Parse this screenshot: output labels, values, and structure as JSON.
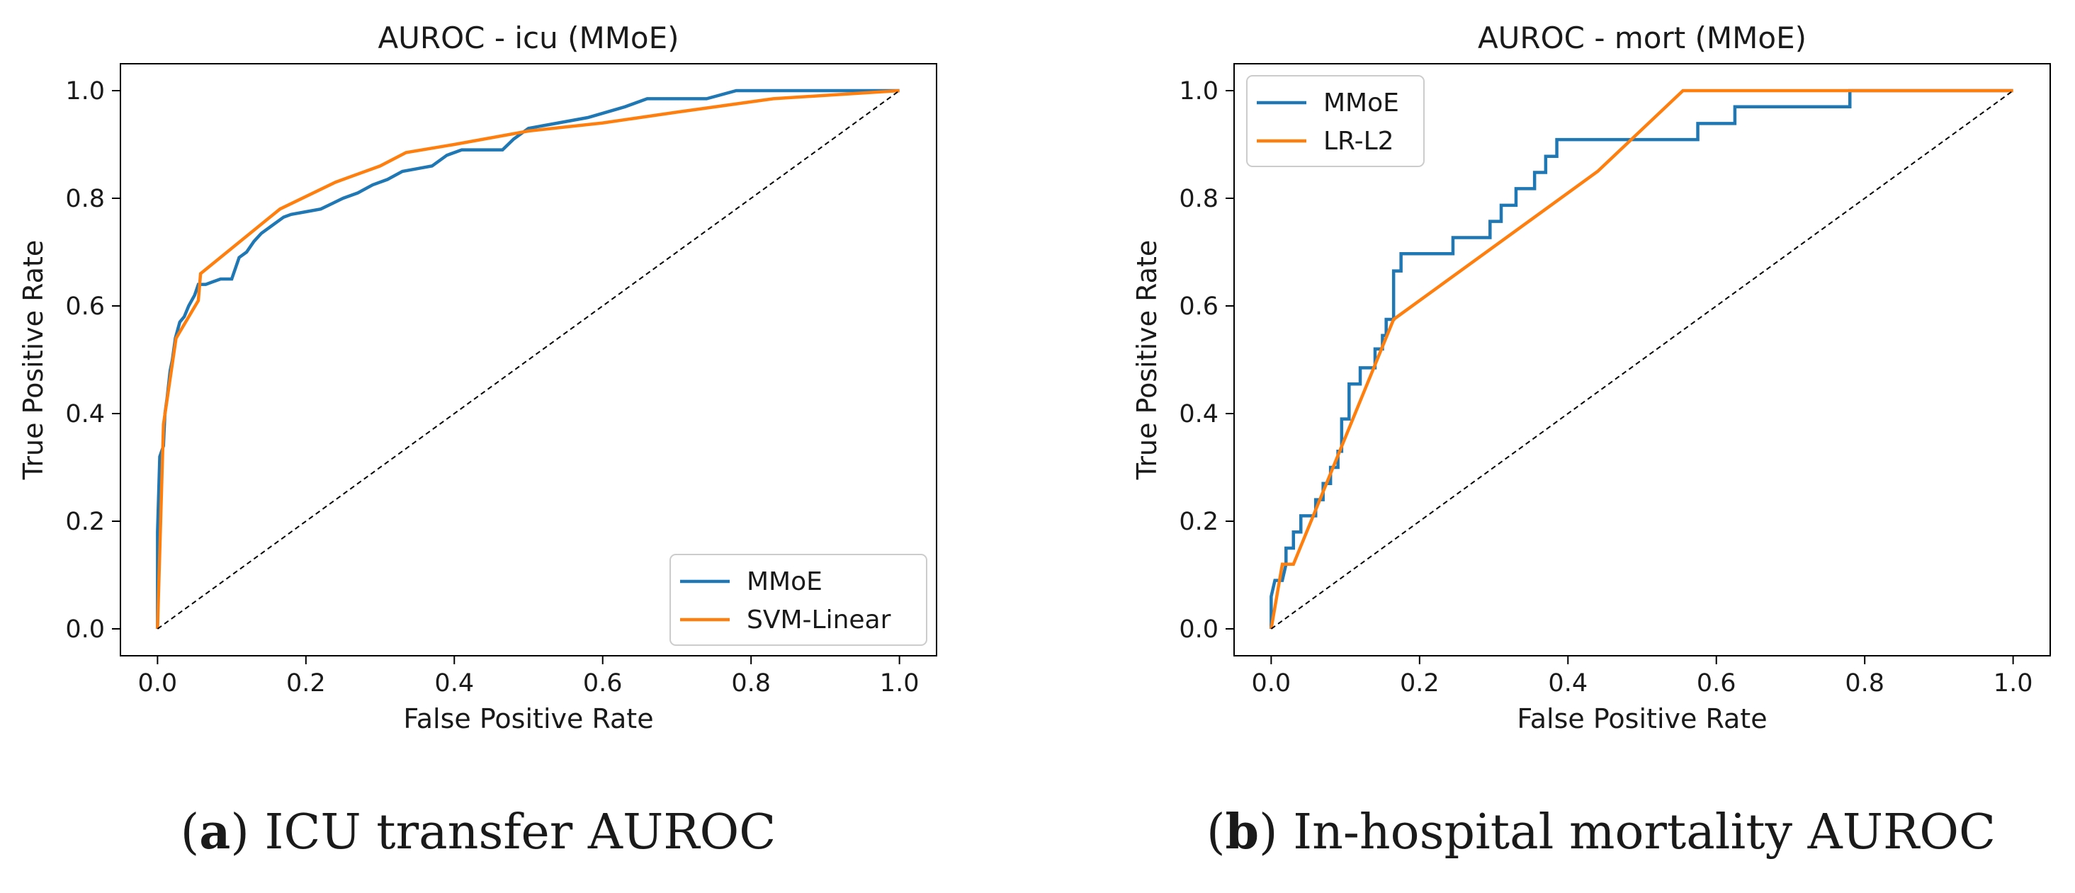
{
  "chart_data": [
    {
      "type": "line",
      "title": "AUROC - icu (MMoE)",
      "xlabel": "False Positive Rate",
      "ylabel": "True Positive Rate",
      "xlim": [
        -0.05,
        1.05
      ],
      "ylim": [
        -0.05,
        1.05
      ],
      "xticks": [
        0.0,
        0.2,
        0.4,
        0.6,
        0.8,
        1.0
      ],
      "yticks": [
        0.0,
        0.2,
        0.4,
        0.6,
        0.8,
        1.0
      ],
      "tick_labels": [
        "0.0",
        "0.2",
        "0.4",
        "0.6",
        "0.8",
        "1.0"
      ],
      "legend_position": "lower-right",
      "grid": false,
      "series": [
        {
          "name": "MMoE",
          "color": "#1f77b4",
          "step": true,
          "points": [
            [
              0.0,
              0.0
            ],
            [
              0.0,
              0.18
            ],
            [
              0.003,
              0.32
            ],
            [
              0.008,
              0.34
            ],
            [
              0.01,
              0.4
            ],
            [
              0.013,
              0.43
            ],
            [
              0.017,
              0.48
            ],
            [
              0.02,
              0.5
            ],
            [
              0.024,
              0.54
            ],
            [
              0.03,
              0.57
            ],
            [
              0.036,
              0.58
            ],
            [
              0.042,
              0.6
            ],
            [
              0.05,
              0.62
            ],
            [
              0.055,
              0.64
            ],
            [
              0.065,
              0.64
            ],
            [
              0.075,
              0.645
            ],
            [
              0.085,
              0.65
            ],
            [
              0.1,
              0.65
            ],
            [
              0.105,
              0.67
            ],
            [
              0.11,
              0.69
            ],
            [
              0.12,
              0.7
            ],
            [
              0.13,
              0.72
            ],
            [
              0.14,
              0.735
            ],
            [
              0.15,
              0.745
            ],
            [
              0.16,
              0.755
            ],
            [
              0.17,
              0.765
            ],
            [
              0.18,
              0.77
            ],
            [
              0.2,
              0.775
            ],
            [
              0.22,
              0.78
            ],
            [
              0.235,
              0.79
            ],
            [
              0.25,
              0.8
            ],
            [
              0.27,
              0.81
            ],
            [
              0.29,
              0.825
            ],
            [
              0.31,
              0.835
            ],
            [
              0.33,
              0.85
            ],
            [
              0.35,
              0.855
            ],
            [
              0.37,
              0.86
            ],
            [
              0.39,
              0.88
            ],
            [
              0.41,
              0.89
            ],
            [
              0.465,
              0.89
            ],
            [
              0.48,
              0.91
            ],
            [
              0.5,
              0.93
            ],
            [
              0.54,
              0.94
            ],
            [
              0.58,
              0.95
            ],
            [
              0.63,
              0.97
            ],
            [
              0.66,
              0.985
            ],
            [
              0.74,
              0.985
            ],
            [
              0.78,
              1.0
            ],
            [
              1.0,
              1.0
            ]
          ]
        },
        {
          "name": "SVM-Linear",
          "color": "#ff7f0e",
          "step": false,
          "points": [
            [
              0.0,
              0.0
            ],
            [
              0.008,
              0.38
            ],
            [
              0.025,
              0.54
            ],
            [
              0.055,
              0.61
            ],
            [
              0.058,
              0.66
            ],
            [
              0.165,
              0.78
            ],
            [
              0.24,
              0.83
            ],
            [
              0.3,
              0.86
            ],
            [
              0.335,
              0.885
            ],
            [
              0.4,
              0.9
            ],
            [
              0.5,
              0.925
            ],
            [
              0.6,
              0.94
            ],
            [
              0.7,
              0.96
            ],
            [
              0.83,
              0.985
            ],
            [
              1.0,
              1.0
            ]
          ]
        },
        {
          "name": "",
          "color": "#000000",
          "dashed": true,
          "points": [
            [
              0.0,
              0.0
            ],
            [
              1.0,
              1.0
            ]
          ]
        }
      ]
    },
    {
      "type": "line",
      "title": "AUROC - mort (MMoE)",
      "xlabel": "False Positive Rate",
      "ylabel": "True Positive Rate",
      "xlim": [
        -0.05,
        1.05
      ],
      "ylim": [
        -0.05,
        1.05
      ],
      "xticks": [
        0.0,
        0.2,
        0.4,
        0.6,
        0.8,
        1.0
      ],
      "yticks": [
        0.0,
        0.2,
        0.4,
        0.6,
        0.8,
        1.0
      ],
      "tick_labels": [
        "0.0",
        "0.2",
        "0.4",
        "0.6",
        "0.8",
        "1.0"
      ],
      "legend_position": "upper-left",
      "grid": false,
      "series": [
        {
          "name": "MMoE",
          "color": "#1f77b4",
          "step": true,
          "points": [
            [
              0.0,
              0.0
            ],
            [
              0.0,
              0.06
            ],
            [
              0.005,
              0.09
            ],
            [
              0.015,
              0.09
            ],
            [
              0.02,
              0.12
            ],
            [
              0.02,
              0.15
            ],
            [
              0.03,
              0.15
            ],
            [
              0.03,
              0.18
            ],
            [
              0.04,
              0.18
            ],
            [
              0.04,
              0.21
            ],
            [
              0.06,
              0.21
            ],
            [
              0.06,
              0.24
            ],
            [
              0.07,
              0.24
            ],
            [
              0.07,
              0.27
            ],
            [
              0.08,
              0.27
            ],
            [
              0.08,
              0.3
            ],
            [
              0.09,
              0.3
            ],
            [
              0.09,
              0.33
            ],
            [
              0.095,
              0.33
            ],
            [
              0.095,
              0.39
            ],
            [
              0.105,
              0.39
            ],
            [
              0.105,
              0.455
            ],
            [
              0.12,
              0.455
            ],
            [
              0.12,
              0.485
            ],
            [
              0.14,
              0.485
            ],
            [
              0.14,
              0.52
            ],
            [
              0.15,
              0.52
            ],
            [
              0.15,
              0.545
            ],
            [
              0.155,
              0.545
            ],
            [
              0.155,
              0.575
            ],
            [
              0.165,
              0.575
            ],
            [
              0.165,
              0.665
            ],
            [
              0.175,
              0.665
            ],
            [
              0.175,
              0.697
            ],
            [
              0.245,
              0.697
            ],
            [
              0.245,
              0.727
            ],
            [
              0.295,
              0.727
            ],
            [
              0.295,
              0.757
            ],
            [
              0.31,
              0.757
            ],
            [
              0.31,
              0.787
            ],
            [
              0.33,
              0.787
            ],
            [
              0.33,
              0.818
            ],
            [
              0.355,
              0.818
            ],
            [
              0.355,
              0.848
            ],
            [
              0.37,
              0.848
            ],
            [
              0.37,
              0.878
            ],
            [
              0.385,
              0.878
            ],
            [
              0.385,
              0.909
            ],
            [
              0.575,
              0.909
            ],
            [
              0.575,
              0.939
            ],
            [
              0.625,
              0.939
            ],
            [
              0.625,
              0.97
            ],
            [
              0.78,
              0.97
            ],
            [
              0.78,
              1.0
            ],
            [
              1.0,
              1.0
            ]
          ]
        },
        {
          "name": "LR-L2",
          "color": "#ff7f0e",
          "step": false,
          "points": [
            [
              0.0,
              0.0
            ],
            [
              0.015,
              0.12
            ],
            [
              0.03,
              0.12
            ],
            [
              0.165,
              0.575
            ],
            [
              0.44,
              0.85
            ],
            [
              0.555,
              1.0
            ],
            [
              1.0,
              1.0
            ]
          ]
        },
        {
          "name": "",
          "color": "#000000",
          "dashed": true,
          "points": [
            [
              0.0,
              0.0
            ],
            [
              1.0,
              1.0
            ]
          ]
        }
      ]
    }
  ],
  "captions": [
    {
      "letter": "a",
      "text": " ICU transfer AUROC"
    },
    {
      "letter": "b",
      "text": " In-hospital mortality AUROC"
    }
  ]
}
